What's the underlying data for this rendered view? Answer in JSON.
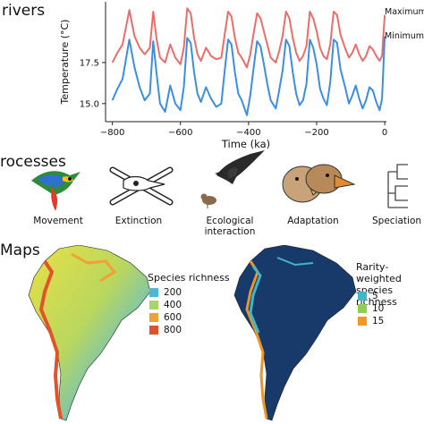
{
  "sections": {
    "drivers": "rivers",
    "processes": "rocesses",
    "maps": "Maps"
  },
  "chart_data": {
    "type": "line",
    "xlabel": "Time (ka)",
    "ylabel": "Temperature (°C)",
    "xlim": [
      -820,
      5
    ],
    "ylim": [
      13.9,
      21.2
    ],
    "xticks": [
      -800,
      -600,
      -400,
      -200,
      0
    ],
    "yticks": [
      15.0,
      17.5
    ],
    "series": [
      {
        "name": "Maximum",
        "color": "#ea6d6a",
        "x": [
          -800,
          -785,
          -770,
          -750,
          -735,
          -720,
          -705,
          -690,
          -680,
          -670,
          -660,
          -645,
          -630,
          -615,
          -600,
          -590,
          -580,
          -570,
          -560,
          -550,
          -540,
          -525,
          -510,
          -495,
          -480,
          -470,
          -460,
          -450,
          -440,
          -430,
          -420,
          -405,
          -395,
          -385,
          -375,
          -365,
          -355,
          -345,
          -335,
          -320,
          -310,
          -300,
          -290,
          -280,
          -270,
          -260,
          -250,
          -240,
          -230,
          -220,
          -210,
          -200,
          -190,
          -180,
          -170,
          -160,
          -150,
          -140,
          -130,
          -115,
          -105,
          -95,
          -85,
          -75,
          -65,
          -55,
          -45,
          -35,
          -25,
          -15,
          -8,
          0
        ],
        "y": [
          17.5,
          18.1,
          18.6,
          20.7,
          19.1,
          18.4,
          18.0,
          18.4,
          20.6,
          18.9,
          17.8,
          17.5,
          18.6,
          17.8,
          17.4,
          18.4,
          20.8,
          20.5,
          19.0,
          18.0,
          17.6,
          18.4,
          17.9,
          17.7,
          17.8,
          19.2,
          20.6,
          20.3,
          19.0,
          18.1,
          17.8,
          17.2,
          18.0,
          19.3,
          20.5,
          20.2,
          19.4,
          18.6,
          17.8,
          17.5,
          18.2,
          19.1,
          20.6,
          20.2,
          19.0,
          18.1,
          17.6,
          17.9,
          18.5,
          20.6,
          20.2,
          19.4,
          18.4,
          17.9,
          17.7,
          18.6,
          20.6,
          20.4,
          19.2,
          18.3,
          17.8,
          18.1,
          18.6,
          18.0,
          17.6,
          17.9,
          18.5,
          18.3,
          17.9,
          17.6,
          17.9,
          20.4
        ]
      },
      {
        "name": "Minimum",
        "color": "#3c8ee0",
        "x": [
          -800,
          -785,
          -770,
          -750,
          -735,
          -720,
          -705,
          -690,
          -680,
          -670,
          -660,
          -645,
          -630,
          -615,
          -600,
          -590,
          -580,
          -570,
          -560,
          -550,
          -540,
          -525,
          -510,
          -495,
          -480,
          -470,
          -460,
          -450,
          -440,
          -430,
          -420,
          -405,
          -395,
          -385,
          -375,
          -365,
          -355,
          -345,
          -335,
          -320,
          -310,
          -300,
          -290,
          -280,
          -270,
          -260,
          -250,
          -240,
          -230,
          -220,
          -210,
          -200,
          -190,
          -180,
          -170,
          -160,
          -150,
          -140,
          -130,
          -115,
          -105,
          -95,
          -85,
          -75,
          -65,
          -55,
          -45,
          -35,
          -25,
          -15,
          -8,
          0
        ],
        "y": [
          15.2,
          15.9,
          16.5,
          18.9,
          17.2,
          16.0,
          15.2,
          15.6,
          18.8,
          16.8,
          15.0,
          14.5,
          16.1,
          15.0,
          14.6,
          16.0,
          19.0,
          18.7,
          16.9,
          15.6,
          15.1,
          16.0,
          15.3,
          14.8,
          15.0,
          17.0,
          18.9,
          18.6,
          16.9,
          15.6,
          15.2,
          14.3,
          15.5,
          17.2,
          18.8,
          18.5,
          17.4,
          16.2,
          15.2,
          14.7,
          15.8,
          17.0,
          18.9,
          18.5,
          16.9,
          15.6,
          14.9,
          15.2,
          16.2,
          18.9,
          18.4,
          17.4,
          15.9,
          15.3,
          14.9,
          16.3,
          18.9,
          18.7,
          17.1,
          15.9,
          15.0,
          15.5,
          16.1,
          15.3,
          14.7,
          15.2,
          16.0,
          15.8,
          15.1,
          14.6,
          15.3,
          19.1
        ]
      }
    ]
  },
  "processes": [
    {
      "label": "Movement",
      "icon": "parrot-icon"
    },
    {
      "label": "Extinction",
      "icon": "skull-crossbones-icon"
    },
    {
      "label": "Ecological\ninteraction",
      "icon": "bird-predation-icon"
    },
    {
      "label": "Adaptation",
      "icon": "bird-beaks-icon"
    },
    {
      "label": "Speciation",
      "icon": "phylogeny-tree-icon"
    }
  ],
  "maps": {
    "left": {
      "title": "Species richness",
      "legend": [
        {
          "value": "200",
          "color": "#4bb8d8"
        },
        {
          "value": "400",
          "color": "#a8d46a"
        },
        {
          "value": "600",
          "color": "#f1a233"
        },
        {
          "value": "800",
          "color": "#e1512c"
        }
      ]
    },
    "right": {
      "title": "Rarity-weighted\nspecies richness",
      "legend": [
        {
          "value": "5",
          "color": "#3fb7c9"
        },
        {
          "value": "10",
          "color": "#8fcd55"
        },
        {
          "value": "15",
          "color": "#f5961f"
        }
      ]
    }
  }
}
